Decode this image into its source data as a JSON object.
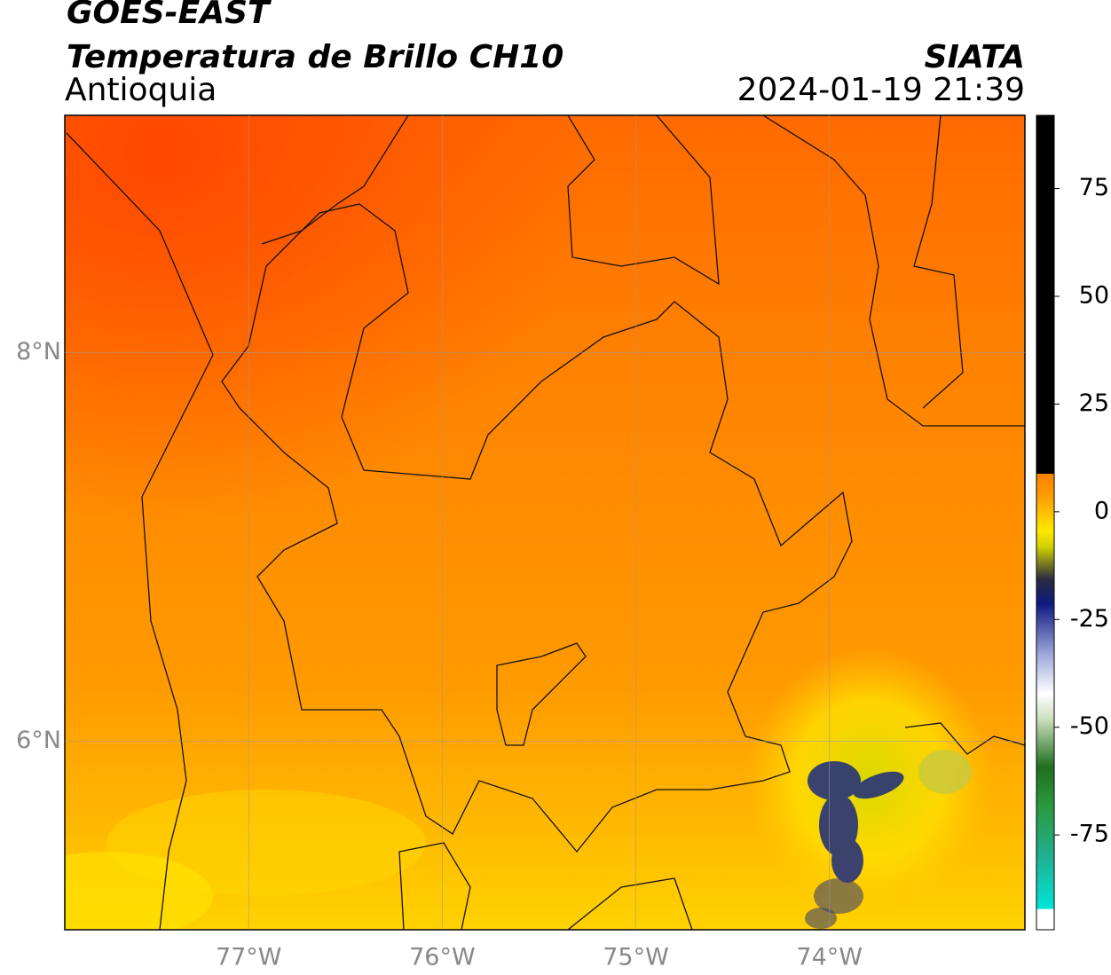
{
  "map": {
    "title": "GOES-EAST",
    "subtitle": "Temperatura de Brillo CH10",
    "region": "Antioquia",
    "source": "SIATA",
    "datetime": "2024-01-19 21:39",
    "lonlim": [
      -77.95,
      -72.99
    ],
    "latlim": [
      5.03,
      9.22
    ],
    "xticks": [
      {
        "value": -77,
        "label": "77°W"
      },
      {
        "value": -76,
        "label": "76°W"
      },
      {
        "value": -75,
        "label": "75°W"
      },
      {
        "value": -74,
        "label": "74°W"
      }
    ],
    "yticks": [
      {
        "value": 8,
        "label": "8°N"
      },
      {
        "value": 6,
        "label": "6°N"
      }
    ],
    "grid": true,
    "colorbar": {
      "lim": [
        -97,
        92
      ],
      "ticks": [
        75,
        50,
        25,
        0,
        -25,
        -50,
        -75
      ]
    }
  }
}
